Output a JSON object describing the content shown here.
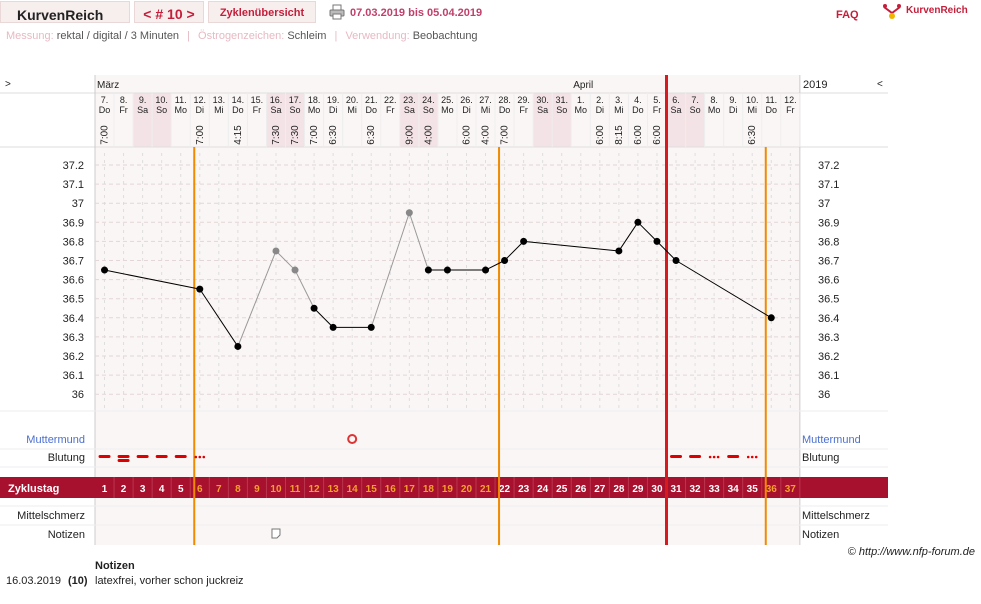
{
  "header": {
    "brand": "KurvenReich",
    "cycle_nav": "< # 10 >",
    "overview_tab": "Zyklenübersicht",
    "print_icon": "printer-icon",
    "date_range": "07.03.2019 bis 05.04.2019",
    "faq": "FAQ",
    "logo_text": "KurvenReich"
  },
  "info": {
    "measure_label": "Messung:",
    "measure_value": "rektal / digital / 3 Minuten",
    "estrogen_label": "Östrogenzeichen:",
    "estrogen_value": "Schleim",
    "usage_label": "Verwendung:",
    "usage_value": "Beobachtung"
  },
  "chart": {
    "nav_left": ">",
    "nav_right": "<",
    "year": "2019",
    "months": [
      {
        "label": "März",
        "col": 0
      },
      {
        "label": "April",
        "col": 25
      }
    ],
    "days": [
      {
        "d": "7.",
        "w": "Do",
        "t": "7:00"
      },
      {
        "d": "8.",
        "w": "Fr",
        "t": ""
      },
      {
        "d": "9.",
        "w": "Sa",
        "t": ""
      },
      {
        "d": "10.",
        "w": "So",
        "t": ""
      },
      {
        "d": "11.",
        "w": "Mo",
        "t": ""
      },
      {
        "d": "12.",
        "w": "Di",
        "t": "7:00"
      },
      {
        "d": "13.",
        "w": "Mi",
        "t": ""
      },
      {
        "d": "14.",
        "w": "Do",
        "t": "4:15"
      },
      {
        "d": "15.",
        "w": "Fr",
        "t": ""
      },
      {
        "d": "16.",
        "w": "Sa",
        "t": "7:30"
      },
      {
        "d": "17.",
        "w": "So",
        "t": "7:30"
      },
      {
        "d": "18.",
        "w": "Mo",
        "t": "7:00"
      },
      {
        "d": "19.",
        "w": "Di",
        "t": "6:30"
      },
      {
        "d": "20.",
        "w": "Mi",
        "t": ""
      },
      {
        "d": "21.",
        "w": "Do",
        "t": "6:30"
      },
      {
        "d": "22.",
        "w": "Fr",
        "t": ""
      },
      {
        "d": "23.",
        "w": "Sa",
        "t": "9:00"
      },
      {
        "d": "24.",
        "w": "So",
        "t": "4:00"
      },
      {
        "d": "25.",
        "w": "Mo",
        "t": ""
      },
      {
        "d": "26.",
        "w": "Di",
        "t": "6:00"
      },
      {
        "d": "27.",
        "w": "Mi",
        "t": "4:00"
      },
      {
        "d": "28.",
        "w": "Do",
        "t": "7:00"
      },
      {
        "d": "29.",
        "w": "Fr",
        "t": ""
      },
      {
        "d": "30.",
        "w": "Sa",
        "t": ""
      },
      {
        "d": "31.",
        "w": "So",
        "t": ""
      },
      {
        "d": "1.",
        "w": "Mo",
        "t": ""
      },
      {
        "d": "2.",
        "w": "Di",
        "t": "6:00"
      },
      {
        "d": "3.",
        "w": "Mi",
        "t": "8:15"
      },
      {
        "d": "4.",
        "w": "Do",
        "t": "6:00"
      },
      {
        "d": "5.",
        "w": "Fr",
        "t": "6:00"
      },
      {
        "d": "6.",
        "w": "Sa",
        "t": ""
      },
      {
        "d": "7.",
        "w": "So",
        "t": ""
      },
      {
        "d": "8.",
        "w": "Mo",
        "t": ""
      },
      {
        "d": "9.",
        "w": "Di",
        "t": ""
      },
      {
        "d": "10.",
        "w": "Mi",
        "t": "6:30"
      },
      {
        "d": "11.",
        "w": "Do",
        "t": ""
      },
      {
        "d": "12.",
        "w": "Fr",
        "t": ""
      }
    ],
    "y_ticks": [
      "37.2",
      "37.1",
      "37",
      "36.9",
      "36.8",
      "36.7",
      "36.6",
      "36.5",
      "36.4",
      "36.3",
      "36.2",
      "36.1",
      "36"
    ],
    "y_min": 36.0,
    "y_max": 37.2,
    "temps": [
      36.65,
      null,
      null,
      null,
      null,
      36.55,
      null,
      36.25,
      null,
      36.75,
      36.65,
      36.45,
      36.35,
      null,
      36.35,
      null,
      36.95,
      36.65,
      36.65,
      null,
      36.65,
      36.7,
      36.8,
      null,
      null,
      null,
      null,
      36.75,
      36.9,
      36.8,
      36.7,
      null,
      null,
      null,
      null,
      36.4,
      null
    ],
    "temps_gray": [
      9,
      10,
      15,
      16
    ],
    "row_labels": {
      "cervix": "Muttermund",
      "bleeding": "Blutung",
      "cycle_day": "Zyklustag",
      "midpain": "Mittelschmerz",
      "notes": "Notizen"
    },
    "cervix_col": 13,
    "bleeding": [
      "heavy",
      "heavy2",
      "heavy",
      "heavy",
      "heavy",
      "spot",
      null,
      null,
      null,
      null,
      null,
      null,
      null,
      null,
      null,
      null,
      null,
      null,
      null,
      null,
      null,
      null,
      null,
      null,
      null,
      null,
      null,
      null,
      null,
      null,
      "heavy",
      "heavy",
      "spot",
      "heavy",
      "spot",
      null,
      null
    ],
    "cycle_days": [
      "1",
      "2",
      "3",
      "4",
      "5",
      "6",
      "7",
      "8",
      "9",
      "10",
      "11",
      "12",
      "13",
      "14",
      "15",
      "16",
      "17",
      "18",
      "19",
      "20",
      "21",
      "22",
      "23",
      "24",
      "25",
      "26",
      "27",
      "28",
      "29",
      "30",
      "31",
      "32",
      "33",
      "34",
      "35",
      "36",
      "37"
    ],
    "highlight_days": [
      6,
      7,
      8,
      9,
      10,
      11,
      12,
      13,
      14,
      15,
      16,
      17,
      18,
      19,
      20,
      21,
      36,
      37
    ],
    "note_col": 9,
    "weekend_cols": [
      2,
      3,
      9,
      10,
      16,
      17,
      23,
      24,
      30,
      31
    ],
    "orange_lines": [
      5,
      21,
      35
    ],
    "red_line_col": 30,
    "colors": {
      "accent": "#c41e3a",
      "cycle_bar": "#a8112e",
      "orange": "#f08a00",
      "weekend": "#f4e3e6",
      "gridbg": "#fbf6f6",
      "blue": "#4a6fd0"
    }
  },
  "footer": {
    "copyright": "© http://www.nfp-forum.de",
    "notes_heading": "Notizen",
    "notes": [
      {
        "date": "16.03.2019",
        "cycle_day": "(10)",
        "text": "latexfrei, vorher schon juckreiz"
      }
    ]
  }
}
